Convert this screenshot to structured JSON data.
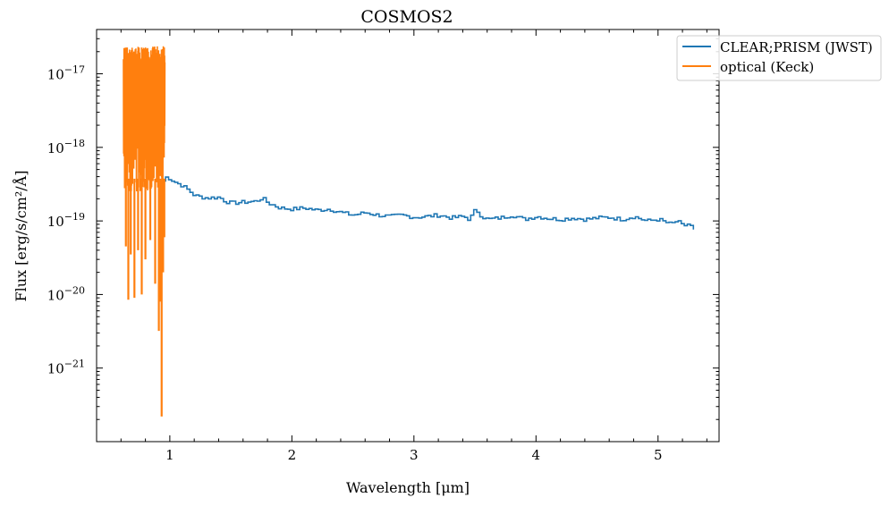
{
  "chart_data": {
    "type": "line",
    "title": "COSMOS2",
    "xlabel": "Wavelength [μm]",
    "ylabel": "Flux [erg/s/cm²/Å]",
    "xlim": [
      0.4,
      5.5
    ],
    "ylim": [
      1e-22,
      4e-17
    ],
    "yscale": "log",
    "x_ticks": [
      {
        "value": 1,
        "label": "1"
      },
      {
        "value": 2,
        "label": "2"
      },
      {
        "value": 3,
        "label": "3"
      },
      {
        "value": 4,
        "label": "4"
      },
      {
        "value": 5,
        "label": "5"
      }
    ],
    "y_ticks": [
      {
        "value": 1e-17,
        "label": "10",
        "exp": "−17"
      },
      {
        "value": 1e-18,
        "label": "10",
        "exp": "−18"
      },
      {
        "value": 1e-19,
        "label": "10",
        "exp": "−19"
      },
      {
        "value": 1e-20,
        "label": "10",
        "exp": "−20"
      },
      {
        "value": 1e-21,
        "label": "10",
        "exp": "−21"
      }
    ],
    "legend_position": "top-right",
    "series": [
      {
        "name": "CLEAR;PRISM (JWST)",
        "color": "#1f77b4",
        "x": [
          0.94,
          0.97,
          1.0,
          1.05,
          1.1,
          1.15,
          1.2,
          1.3,
          1.4,
          1.45,
          1.5,
          1.6,
          1.7,
          1.75,
          1.8,
          1.9,
          2.0,
          2.1,
          2.2,
          2.3,
          2.4,
          2.5,
          2.6,
          2.7,
          2.8,
          2.9,
          3.0,
          3.1,
          3.2,
          3.3,
          3.4,
          3.45,
          3.5,
          3.55,
          3.6,
          3.7,
          3.8,
          3.9,
          4.0,
          4.1,
          4.2,
          4.3,
          4.4,
          4.5,
          4.6,
          4.7,
          4.8,
          4.9,
          5.0,
          5.1,
          5.15,
          5.2,
          5.25,
          5.3
        ],
        "y": [
          3.5e-19,
          4e-19,
          3.7e-19,
          3.3e-19,
          3e-19,
          2.6e-19,
          2.2e-19,
          2.05e-19,
          2.1e-19,
          1.85e-19,
          1.75e-19,
          1.8e-19,
          1.85e-19,
          2.05e-19,
          1.75e-19,
          1.5e-19,
          1.45e-19,
          1.5e-19,
          1.4e-19,
          1.45e-19,
          1.3e-19,
          1.2e-19,
          1.3e-19,
          1.2e-19,
          1.15e-19,
          1.2e-19,
          1.12e-19,
          1.15e-19,
          1.2e-19,
          1.1e-19,
          1.15e-19,
          1.05e-19,
          1.45e-19,
          1.15e-19,
          1.05e-19,
          1.1e-19,
          1.2e-19,
          1.05e-19,
          1.15e-19,
          1.08e-19,
          1.05e-19,
          1.1e-19,
          1.05e-19,
          1.1e-19,
          1.12e-19,
          1.05e-19,
          1.15e-19,
          1e-19,
          1.05e-19,
          9e-20,
          1e-19,
          8.5e-20,
          9.2e-20,
          7e-20
        ]
      },
      {
        "name": "optical (Keck)",
        "color": "#ff7f0e",
        "x_range": [
          0.62,
          0.96
        ],
        "y_band": [
          2.5e-19,
          2.4e-17
        ],
        "dips": [
          {
            "x": 0.64,
            "y": 4.5e-20
          },
          {
            "x": 0.66,
            "y": 8.5e-21
          },
          {
            "x": 0.68,
            "y": 3.5e-20
          },
          {
            "x": 0.71,
            "y": 9e-21
          },
          {
            "x": 0.74,
            "y": 4e-20
          },
          {
            "x": 0.77,
            "y": 1e-20
          },
          {
            "x": 0.8,
            "y": 3e-20
          },
          {
            "x": 0.84,
            "y": 5.5e-20
          },
          {
            "x": 0.88,
            "y": 1.4e-20
          },
          {
            "x": 0.91,
            "y": 3.2e-21
          },
          {
            "x": 0.925,
            "y": 8e-21
          },
          {
            "x": 0.933,
            "y": 2.2e-22
          },
          {
            "x": 0.945,
            "y": 2e-20
          },
          {
            "x": 0.955,
            "y": 6e-20
          }
        ]
      }
    ]
  }
}
